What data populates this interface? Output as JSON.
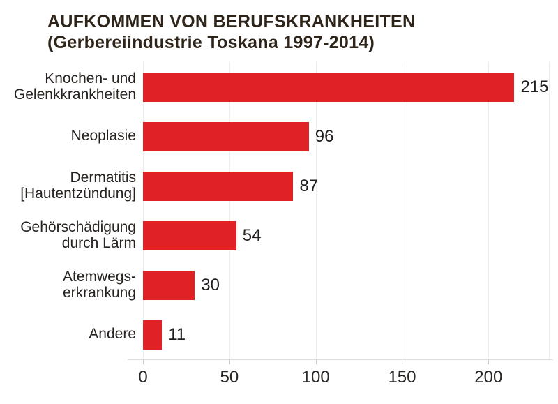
{
  "chart_data": {
    "type": "bar",
    "orientation": "horizontal",
    "title": "AUFKOMMEN VON BERUFSKRANKHEITEN",
    "subtitle": "(Gerbereiindustrie Toskana 1997-2014)",
    "categories": [
      "Knochen- und\nGelenkkrankheiten",
      "Neoplasie",
      "Dermatitis\n[Hautentzündung]",
      "Gehörschädigung\ndurch Lärm",
      "Atemwegs-\nerkrankung",
      "Andere"
    ],
    "values": [
      215,
      96,
      87,
      54,
      30,
      11
    ],
    "xlabel": "",
    "ylabel": "",
    "xlim": [
      0,
      235
    ],
    "xticks": [
      0,
      50,
      100,
      150,
      200
    ],
    "gridline_values": [
      0,
      50,
      100,
      150,
      200,
      235
    ],
    "grid": true,
    "legend": false,
    "colors": {
      "bar": "#E02227",
      "title_text": "#2E2419",
      "label_text": "#262220",
      "value_text": "#211E1C",
      "gridline": "#EDEDED",
      "axis_line": "#DCDCDC",
      "tick_mark": "#CFCFCF",
      "background": "#FFFFFF"
    }
  }
}
